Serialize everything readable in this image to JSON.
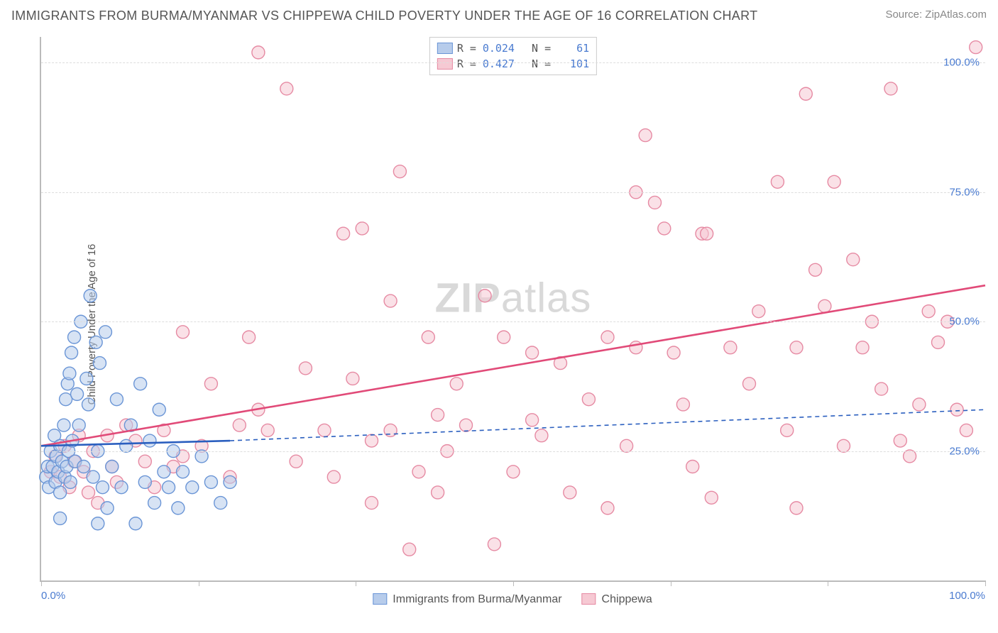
{
  "title": "IMMIGRANTS FROM BURMA/MYANMAR VS CHIPPEWA CHILD POVERTY UNDER THE AGE OF 16 CORRELATION CHART",
  "source": "Source: ZipAtlas.com",
  "y_axis_label": "Child Poverty Under the Age of 16",
  "watermark_bold": "ZIP",
  "watermark_rest": "atlas",
  "chart": {
    "type": "scatter",
    "xlim": [
      0,
      100
    ],
    "ylim": [
      0,
      105
    ],
    "y_ticks": [
      25,
      50,
      75,
      100
    ],
    "y_tick_labels": [
      "25.0%",
      "50.0%",
      "75.0%",
      "100.0%"
    ],
    "x_ticks": [
      0,
      16.67,
      33.33,
      50,
      66.67,
      83.33,
      100
    ],
    "x_tick_labels": {
      "0": "0.0%",
      "100": "100.0%"
    },
    "grid_color": "#dddddd",
    "axis_color": "#bbbbbb",
    "background": "#ffffff",
    "marker_radius": 9,
    "marker_stroke_width": 1.4,
    "trend_line_width": 2.6,
    "trend_dash_width": 1.6,
    "series": {
      "a": {
        "name": "Immigrants from Burma/Myanmar",
        "fill": "#b7cceb",
        "stroke": "#6a95d6",
        "line": "#2b5fbf",
        "R": "0.024",
        "N": "61",
        "trend": [
          [
            0,
            26
          ],
          [
            20,
            27
          ]
        ],
        "trend_dash": [
          [
            20,
            27
          ],
          [
            100,
            33
          ]
        ],
        "points": [
          [
            0.5,
            20
          ],
          [
            0.7,
            22
          ],
          [
            0.8,
            18
          ],
          [
            1.0,
            25
          ],
          [
            1.2,
            22
          ],
          [
            1.4,
            28
          ],
          [
            1.5,
            19
          ],
          [
            1.6,
            24
          ],
          [
            1.8,
            21
          ],
          [
            2.0,
            26
          ],
          [
            2.0,
            17
          ],
          [
            2.2,
            23
          ],
          [
            2.4,
            30
          ],
          [
            2.5,
            20
          ],
          [
            2.6,
            35
          ],
          [
            2.7,
            22
          ],
          [
            2.8,
            38
          ],
          [
            2.9,
            25
          ],
          [
            3.0,
            40
          ],
          [
            3.1,
            19
          ],
          [
            3.2,
            44
          ],
          [
            3.3,
            27
          ],
          [
            3.5,
            47
          ],
          [
            3.6,
            23
          ],
          [
            3.8,
            36
          ],
          [
            4.0,
            30
          ],
          [
            4.2,
            50
          ],
          [
            4.5,
            22
          ],
          [
            4.8,
            39
          ],
          [
            5.0,
            34
          ],
          [
            5.2,
            55
          ],
          [
            5.5,
            20
          ],
          [
            5.8,
            46
          ],
          [
            6.0,
            25
          ],
          [
            6.2,
            42
          ],
          [
            6.5,
            18
          ],
          [
            6.8,
            48
          ],
          [
            7.0,
            14
          ],
          [
            7.5,
            22
          ],
          [
            8.0,
            35
          ],
          [
            8.5,
            18
          ],
          [
            9.0,
            26
          ],
          [
            9.5,
            30
          ],
          [
            10,
            11
          ],
          [
            10.5,
            38
          ],
          [
            11,
            19
          ],
          [
            11.5,
            27
          ],
          [
            12,
            15
          ],
          [
            12.5,
            33
          ],
          [
            13,
            21
          ],
          [
            13.5,
            18
          ],
          [
            14,
            25
          ],
          [
            14.5,
            14
          ],
          [
            15,
            21
          ],
          [
            16,
            18
          ],
          [
            17,
            24
          ],
          [
            18,
            19
          ],
          [
            19,
            15
          ],
          [
            20,
            19
          ],
          [
            2,
            12
          ],
          [
            6,
            11
          ]
        ]
      },
      "b": {
        "name": "Chippewa",
        "fill": "#f6c9d3",
        "stroke": "#e68aa3",
        "line": "#e14a78",
        "R": "0.427",
        "N": "101",
        "trend": [
          [
            0,
            26
          ],
          [
            100,
            57
          ]
        ],
        "points": [
          [
            1,
            21
          ],
          [
            1.5,
            24
          ],
          [
            2,
            20
          ],
          [
            2.5,
            26
          ],
          [
            3,
            18
          ],
          [
            3.5,
            23
          ],
          [
            4,
            28
          ],
          [
            4.5,
            21
          ],
          [
            5,
            17
          ],
          [
            5.5,
            25
          ],
          [
            6,
            15
          ],
          [
            7,
            28
          ],
          [
            7.5,
            22
          ],
          [
            8,
            19
          ],
          [
            9,
            30
          ],
          [
            10,
            27
          ],
          [
            11,
            23
          ],
          [
            12,
            18
          ],
          [
            13,
            29
          ],
          [
            14,
            22
          ],
          [
            15,
            48
          ],
          [
            17,
            26
          ],
          [
            18,
            38
          ],
          [
            20,
            20
          ],
          [
            21,
            30
          ],
          [
            22,
            47
          ],
          [
            23,
            102
          ],
          [
            24,
            29
          ],
          [
            26,
            95
          ],
          [
            27,
            23
          ],
          [
            28,
            41
          ],
          [
            30,
            29
          ],
          [
            31,
            20
          ],
          [
            32,
            67
          ],
          [
            33,
            39
          ],
          [
            34,
            68
          ],
          [
            35,
            27
          ],
          [
            37,
            29
          ],
          [
            38,
            79
          ],
          [
            39,
            6
          ],
          [
            40,
            21
          ],
          [
            41,
            47
          ],
          [
            42,
            17
          ],
          [
            43,
            25
          ],
          [
            44,
            38
          ],
          [
            45,
            30
          ],
          [
            47,
            55
          ],
          [
            48,
            7
          ],
          [
            49,
            47
          ],
          [
            50,
            21
          ],
          [
            52,
            31
          ],
          [
            53,
            28
          ],
          [
            55,
            42
          ],
          [
            56,
            17
          ],
          [
            58,
            35
          ],
          [
            60,
            14
          ],
          [
            62,
            26
          ],
          [
            63,
            45
          ],
          [
            64,
            86
          ],
          [
            65,
            73
          ],
          [
            66,
            68
          ],
          [
            67,
            44
          ],
          [
            68,
            34
          ],
          [
            69,
            22
          ],
          [
            70,
            67
          ],
          [
            70.5,
            67
          ],
          [
            71,
            16
          ],
          [
            73,
            45
          ],
          [
            75,
            38
          ],
          [
            76,
            52
          ],
          [
            78,
            77
          ],
          [
            79,
            29
          ],
          [
            80,
            45
          ],
          [
            81,
            94
          ],
          [
            82,
            60
          ],
          [
            83,
            53
          ],
          [
            84,
            77
          ],
          [
            85,
            26
          ],
          [
            86,
            62
          ],
          [
            87,
            45
          ],
          [
            88,
            50
          ],
          [
            89,
            37
          ],
          [
            90,
            95
          ],
          [
            91,
            27
          ],
          [
            92,
            24
          ],
          [
            93,
            34
          ],
          [
            94,
            52
          ],
          [
            95,
            46
          ],
          [
            96,
            50
          ],
          [
            97,
            33
          ],
          [
            98,
            29
          ],
          [
            99,
            103
          ],
          [
            60,
            47
          ],
          [
            37,
            54
          ],
          [
            23,
            33
          ],
          [
            63,
            75
          ],
          [
            35,
            15
          ],
          [
            80,
            14
          ],
          [
            15,
            24
          ],
          [
            42,
            32
          ],
          [
            52,
            44
          ]
        ]
      }
    }
  },
  "legend_x_items": [
    {
      "key": "a",
      "label": "Immigrants from Burma/Myanmar"
    },
    {
      "key": "b",
      "label": "Chippewa"
    }
  ]
}
